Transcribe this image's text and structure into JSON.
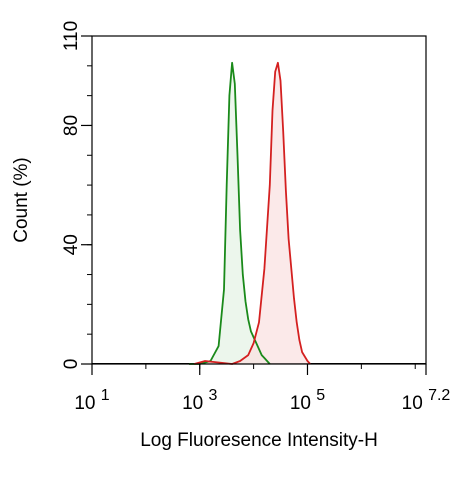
{
  "chart_data": {
    "type": "area",
    "xlabel": "Log Fluoresence Intensity-H",
    "ylabel": "Count  (%)",
    "x_scale": "log",
    "xlim": [
      10,
      15848931.9
    ],
    "ylim": [
      0,
      110
    ],
    "x_tick_labels": [
      {
        "base": "10",
        "exp": "1",
        "value": 10
      },
      {
        "base": "10",
        "exp": "3",
        "value": 1000
      },
      {
        "base": "10",
        "exp": "5",
        "value": 100000
      },
      {
        "base": "10",
        "exp": "7.2",
        "value": 15848931.9
      }
    ],
    "y_ticks": [
      {
        "label": "0",
        "value": 0
      },
      {
        "label": "40",
        "value": 40
      },
      {
        "label": "80",
        "value": 80
      },
      {
        "label": "110",
        "value": 110
      }
    ],
    "grid": false,
    "series": [
      {
        "color": "#1a8a1a",
        "fill": "#e6f3e6",
        "x": [
          631,
          1000,
          1585,
          2239,
          2818,
          3162,
          3548,
          3981,
          4467,
          5012,
          5623,
          6310,
          7079,
          7943,
          8913,
          10000,
          11220,
          12589,
          14125,
          15849,
          17783,
          19953
        ],
        "y": [
          0,
          0,
          1,
          6,
          25,
          60,
          90,
          101,
          94,
          70,
          45,
          30,
          21,
          15,
          11,
          9,
          7,
          5,
          3,
          2,
          1,
          0
        ]
      },
      {
        "color": "#d42020",
        "fill": "#f9e1e1",
        "x": [
          794,
          1259,
          3981,
          5623,
          7943,
          10000,
          12589,
          15849,
          19953,
          22387,
          25119,
          28184,
          31623,
          35481,
          39811,
          44668,
          50119,
          56234,
          63096,
          70795,
          79433,
          100000,
          112202
        ],
        "y": [
          0,
          1,
          0,
          1,
          3,
          7,
          14,
          32,
          60,
          85,
          98,
          101,
          95,
          78,
          58,
          42,
          32,
          22,
          14,
          8,
          4,
          1,
          0
        ]
      }
    ]
  }
}
